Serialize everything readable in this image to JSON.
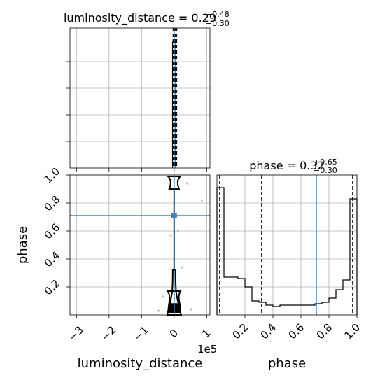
{
  "chart_data": [
    {
      "panel": "marginal-luminosity_distance",
      "type": "histogram",
      "title": {
        "param": "luminosity_distance",
        "median": "0.29",
        "upper": "+0.48",
        "lower": "−0.30"
      },
      "xlim": [
        -320000.0,
        110000.0
      ],
      "x_ticks": [
        -300000.0,
        -200000.0,
        -100000.0,
        0,
        100000.0
      ],
      "bin_edges": [
        -5000,
        5000
      ],
      "values": [
        1.0
      ],
      "quantile_lines": [
        -3000,
        2900,
        7700
      ],
      "truth": 0,
      "grid": true,
      "color": "#000000",
      "truth_color": "#4682b4"
    },
    {
      "panel": "2d-luminosity_distance-phase",
      "type": "contour",
      "xlabel": "luminosity_distance",
      "ylabel": "phase",
      "xlim": [
        -320000.0,
        110000.0
      ],
      "ylim": [
        0.0,
        1.0
      ],
      "x_tick_labels": [
        "−3",
        "−2",
        "−1",
        "0",
        "1"
      ],
      "x_tick_values": [
        -300000.0,
        -200000.0,
        -100000.0,
        0,
        100000.0
      ],
      "x_offset_label": "1e5",
      "y_tick_labels": [
        "0.2",
        "0.4",
        "0.6",
        "0.8",
        "1.0"
      ],
      "y_tick_values": [
        0.2,
        0.4,
        0.6,
        0.8,
        1.0
      ],
      "truth": {
        "x": 0,
        "y": 0.71
      },
      "grid": true,
      "color": "#000000",
      "truth_color": "#4682b4",
      "scatter_points": [
        {
          "x": 40000,
          "y": 0.94
        },
        {
          "x": 85000,
          "y": 0.82
        },
        {
          "x": -35000,
          "y": 0.13
        },
        {
          "x": 25000,
          "y": 0.34
        },
        {
          "x": -10000,
          "y": 0.57
        },
        {
          "x": 12000,
          "y": 0.6
        },
        {
          "x": 52000,
          "y": 0.04
        },
        {
          "x": -48000,
          "y": 0.03
        }
      ]
    },
    {
      "panel": "marginal-phase",
      "type": "histogram",
      "title": {
        "param": "phase",
        "median": "0.32",
        "upper": "+0.65",
        "lower": "−0.30"
      },
      "xlabel": "phase",
      "xlim": [
        0.0,
        1.0
      ],
      "x_tick_labels": [
        "0.2",
        "0.4",
        "0.6",
        "0.8",
        "1.0"
      ],
      "x_tick_values": [
        0.2,
        0.4,
        0.6,
        0.8,
        1.0
      ],
      "bin_edges": [
        0.0,
        0.05,
        0.1,
        0.15,
        0.2,
        0.25,
        0.3,
        0.35,
        0.4,
        0.45,
        0.5,
        0.55,
        0.6,
        0.65,
        0.7,
        0.75,
        0.8,
        0.85,
        0.9,
        0.95,
        1.0
      ],
      "values": [
        0.91,
        0.27,
        0.27,
        0.26,
        0.2,
        0.1,
        0.09,
        0.07,
        0.06,
        0.07,
        0.07,
        0.07,
        0.07,
        0.07,
        0.08,
        0.09,
        0.12,
        0.18,
        0.25,
        0.83
      ],
      "ymax": 1.0,
      "quantile_lines": [
        0.02,
        0.32,
        0.97
      ],
      "truth": 0.71,
      "grid": true,
      "color": "#000000",
      "truth_color": "#4682b4"
    }
  ]
}
